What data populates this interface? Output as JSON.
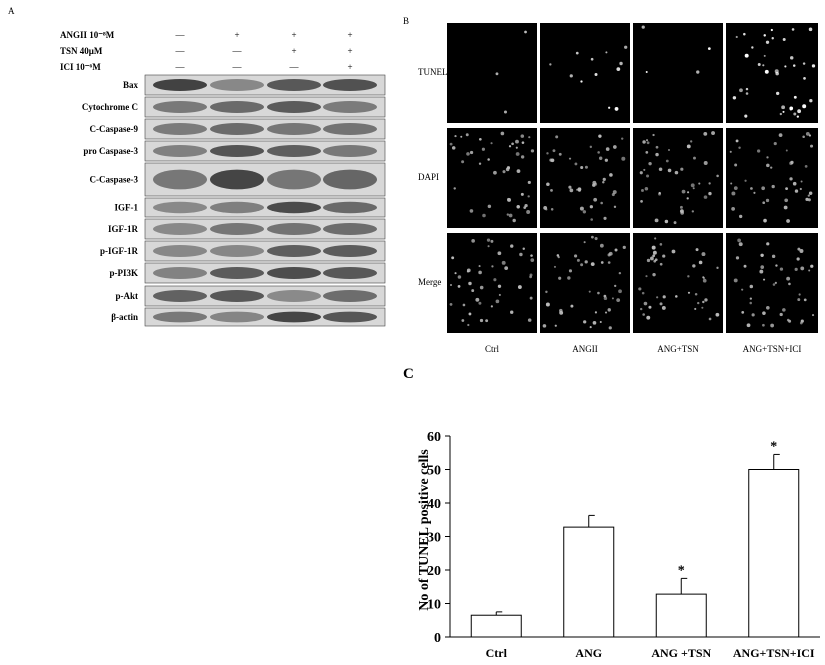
{
  "panel_a": {
    "label": "A",
    "treatments": [
      {
        "name": "ANGII 10⁻⁸M",
        "signs": [
          "—",
          "+",
          "+",
          "+"
        ]
      },
      {
        "name": "TSN 40μM",
        "signs": [
          "—",
          "—",
          "+",
          "+"
        ]
      },
      {
        "name": "ICI 10⁻⁶M",
        "signs": [
          "—",
          "—",
          "—",
          "+"
        ]
      }
    ],
    "proteins": [
      "Bax",
      "Cytochrome C",
      "C-Caspase-9",
      "pro Caspase-3",
      "C-Caspase-3",
      "IGF-1",
      "IGF-1R",
      "p-IGF-1R",
      "p-PI3K",
      "p-Akt",
      "β-actin"
    ]
  },
  "panel_b": {
    "label": "B",
    "rows": [
      "TUNEL",
      "DAPI",
      "Merge"
    ],
    "columns": [
      "Ctrl",
      "ANGII",
      "ANG+TSN",
      "ANG+TSN+ICI"
    ]
  },
  "chart_data": {
    "type": "bar",
    "panel_label": "C",
    "y_label": "No of TUNEL positive cells",
    "categories": [
      "Ctrl",
      "ANG",
      "ANG +TSN",
      "ANG+TSN+ICI"
    ],
    "values": [
      6.5,
      32.8,
      12.8,
      50
    ],
    "errors": [
      1,
      3.5,
      4.7,
      4.5
    ],
    "significance": [
      null,
      null,
      "*",
      "*"
    ],
    "color": "#ffffff",
    "ylim": [
      0,
      60
    ],
    "yticks": [
      0,
      10,
      20,
      30,
      40,
      50,
      60
    ]
  }
}
